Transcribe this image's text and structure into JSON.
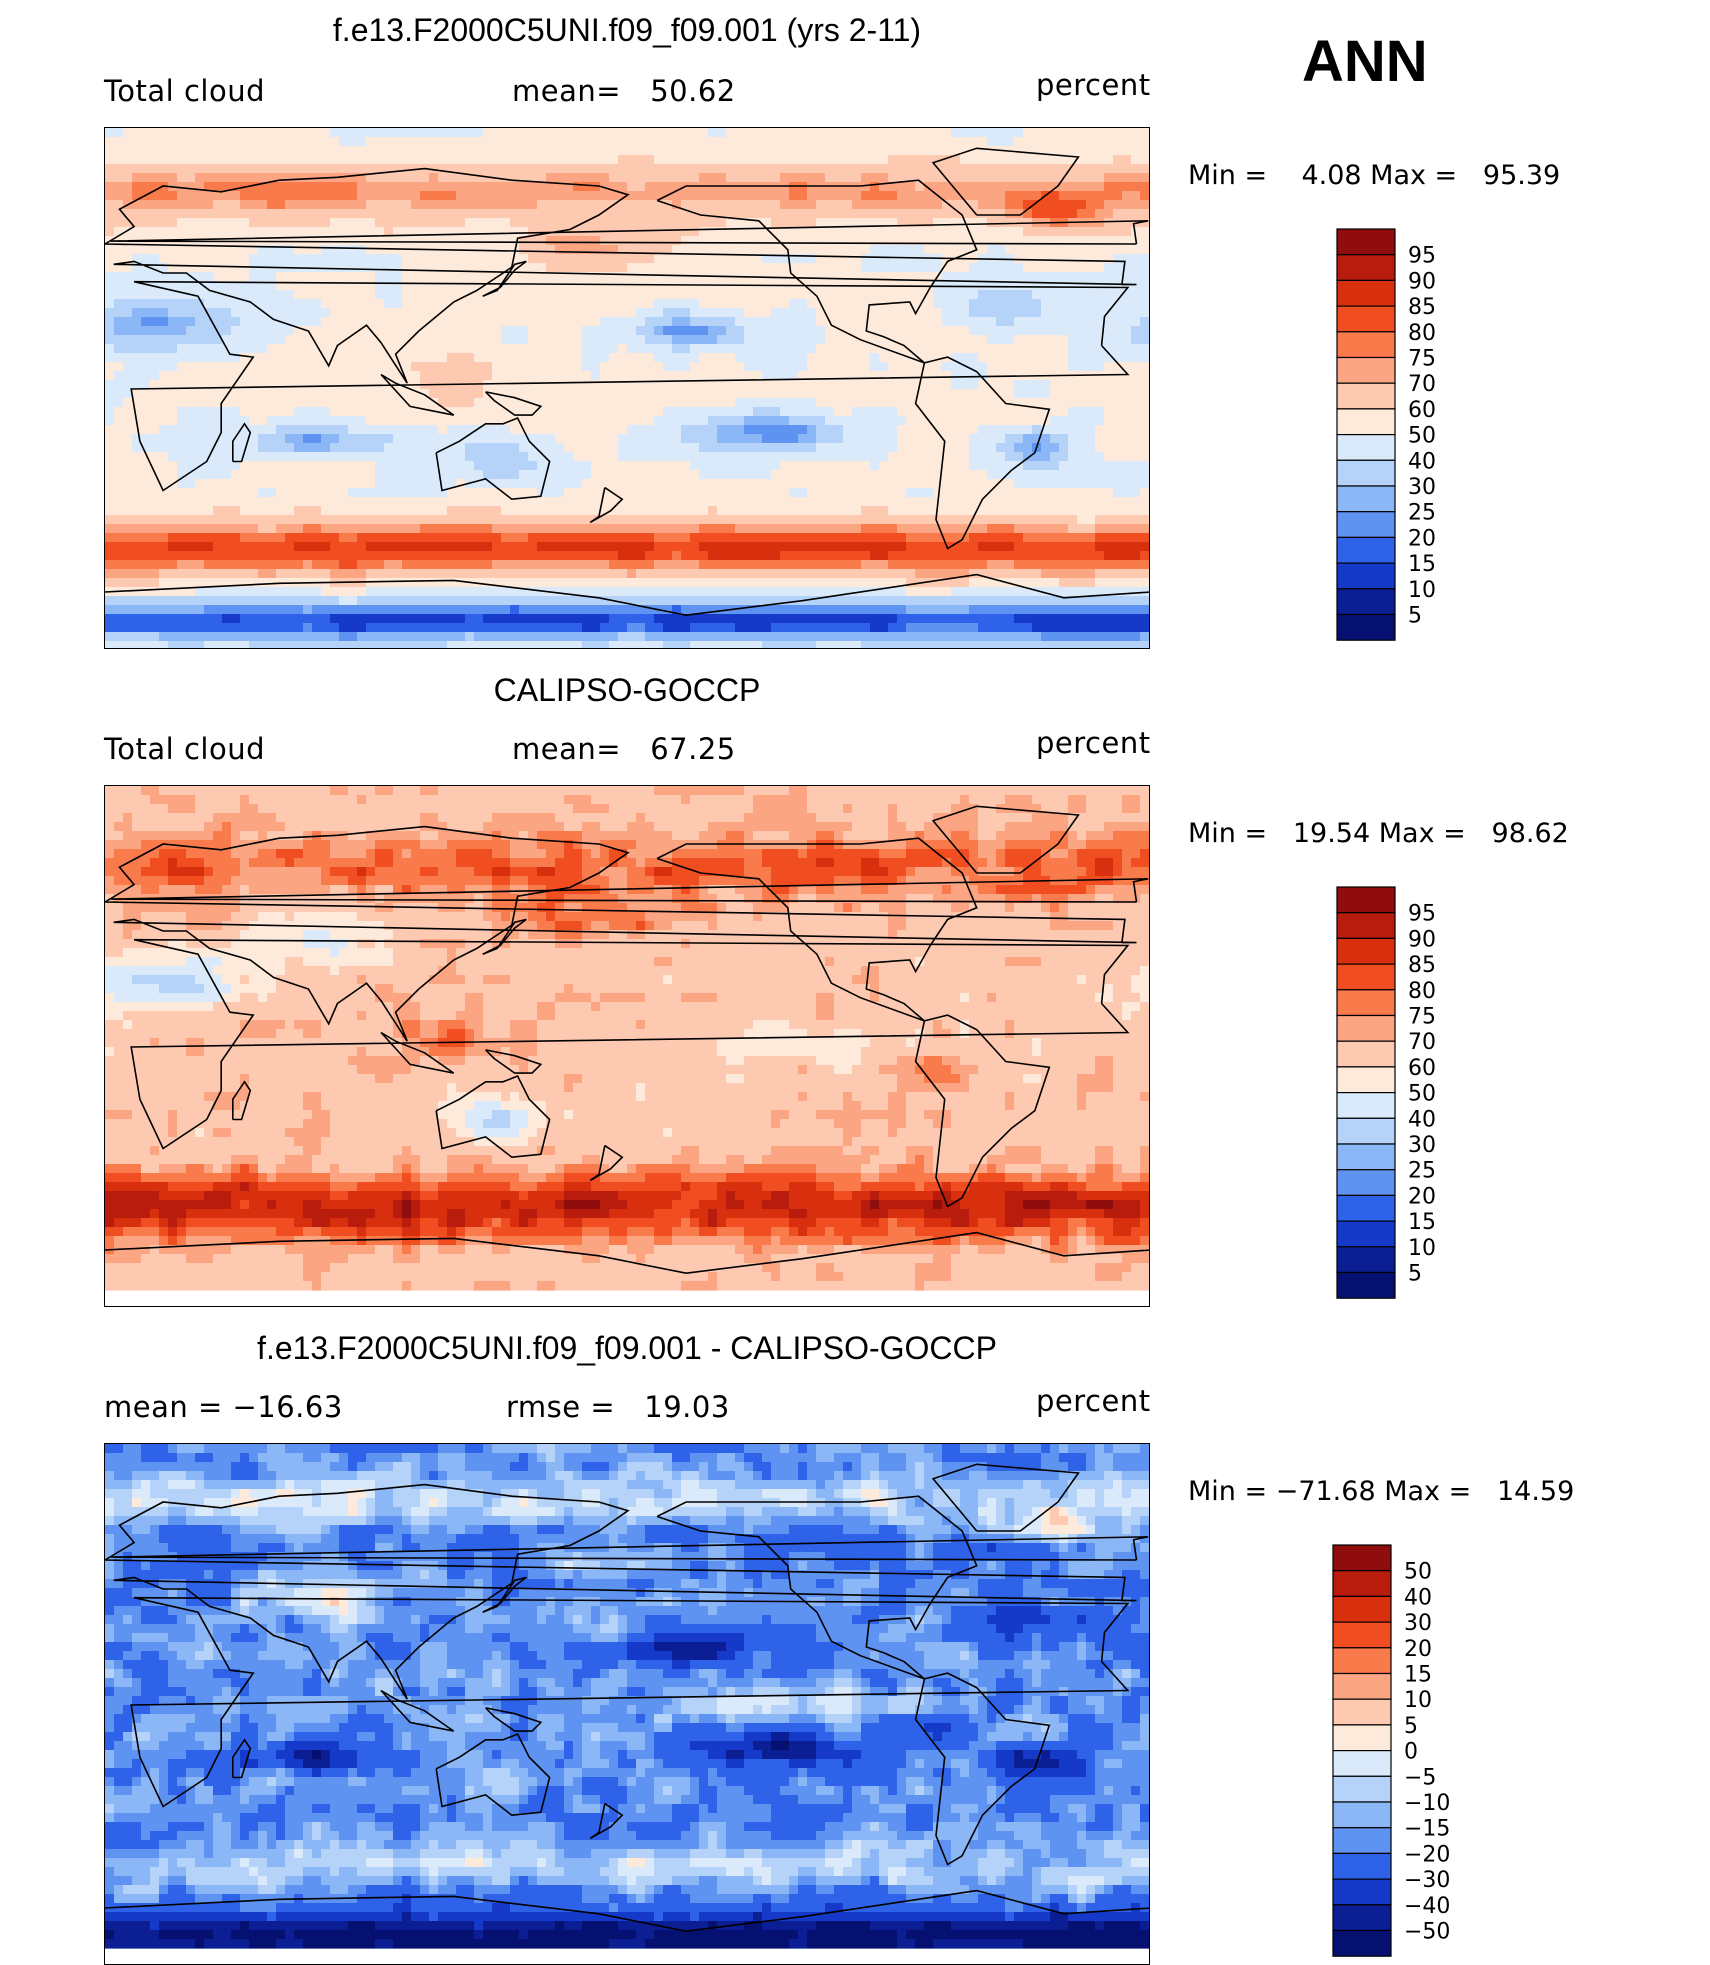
{
  "season": "ANN",
  "panels": [
    {
      "title": "f.e13.F2000C5UNI.f09_f09.001 (yrs 2-11)",
      "left_text": "Total cloud",
      "mid_text": "mean=   50.62",
      "units": "percent",
      "minmax": "Min =    4.08 Max =   95.39",
      "colorbar_labels": [
        "95",
        "90",
        "85",
        "80",
        "75",
        "70",
        "60",
        "50",
        "40",
        "30",
        "25",
        "20",
        "15",
        "10",
        "5"
      ],
      "colorbar_colors": [
        "#8f0d0d",
        "#b71c0d",
        "#d8300f",
        "#f04e20",
        "#f97b4b",
        "#fba583",
        "#fdc9b1",
        "#fdeada",
        "#dbeafb",
        "#b5d2f8",
        "#8cb7f6",
        "#5f93f2",
        "#2e62e8",
        "#1539c9",
        "#0b1e94",
        "#061070"
      ],
      "map_style": "model"
    },
    {
      "title": "CALIPSO-GOCCP",
      "left_text": "Total cloud",
      "mid_text": "mean=   67.25",
      "units": "percent",
      "minmax": "Min =   19.54 Max =   98.62",
      "colorbar_labels": [
        "95",
        "90",
        "85",
        "80",
        "75",
        "70",
        "60",
        "50",
        "40",
        "30",
        "25",
        "20",
        "15",
        "10",
        "5"
      ],
      "colorbar_colors": [
        "#8f0d0d",
        "#b71c0d",
        "#d8300f",
        "#f04e20",
        "#f97b4b",
        "#fba583",
        "#fdc9b1",
        "#fdeada",
        "#dbeafb",
        "#b5d2f8",
        "#8cb7f6",
        "#5f93f2",
        "#2e62e8",
        "#1539c9",
        "#0b1e94",
        "#061070"
      ],
      "map_style": "obs"
    },
    {
      "title": "f.e13.F2000C5UNI.f09_f09.001 - CALIPSO-GOCCP",
      "left_text": "mean = −16.63",
      "mid_text": "rmse =   19.03",
      "units": "percent",
      "minmax": "Min = −71.68 Max =   14.59",
      "colorbar_labels": [
        "50",
        "40",
        "30",
        "20",
        "15",
        "10",
        "5",
        "0",
        "−5",
        "−10",
        "−15",
        "−20",
        "−30",
        "−40",
        "−50"
      ],
      "colorbar_colors": [
        "#8f0d0d",
        "#b71c0d",
        "#d8300f",
        "#f04e20",
        "#f97b4b",
        "#fba583",
        "#fdc9b1",
        "#fdeada",
        "#dbeafb",
        "#b5d2f8",
        "#8cb7f6",
        "#5f93f2",
        "#2e62e8",
        "#1539c9",
        "#0b1e94",
        "#061070"
      ],
      "map_style": "diff"
    }
  ]
}
